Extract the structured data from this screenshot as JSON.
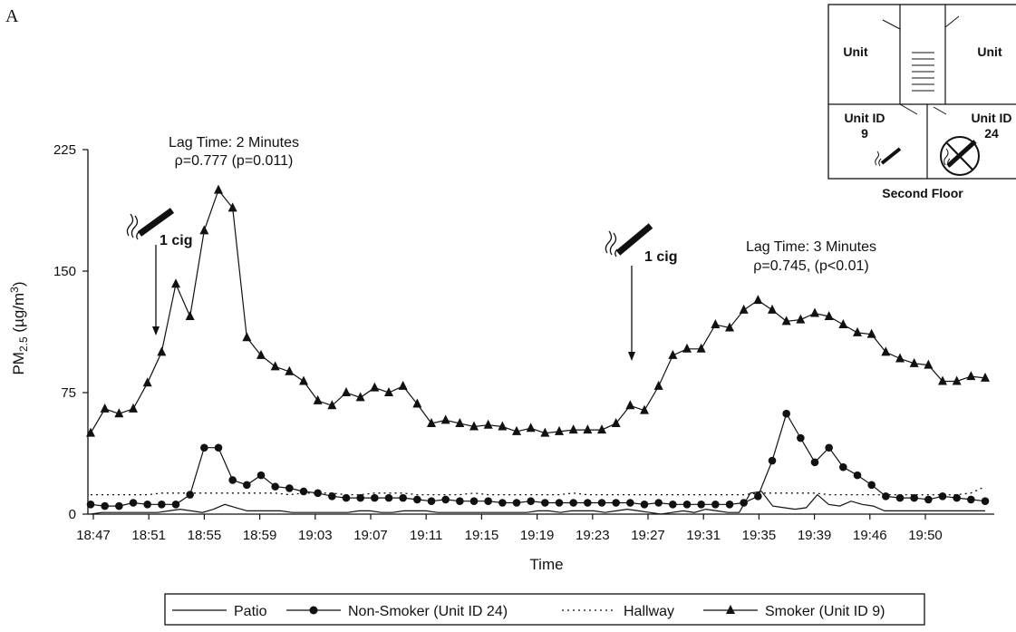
{
  "panel_label": "A",
  "chart_data": {
    "type": "line",
    "xlabel": "Time",
    "ylabel": "PM",
    "ylabel_sub": "2.5",
    "ylabel_unit": " (µg/m",
    "ylabel_sup": "3",
    "ylabel_close": ")",
    "ylim": [
      0,
      225
    ],
    "yticks": [
      "0",
      "75",
      "150",
      "225"
    ],
    "xticks": [
      "18:47",
      "18:51",
      "18:55",
      "18:59",
      "19:03",
      "19:07",
      "19:11",
      "19:15",
      "19:19",
      "19:23",
      "19:27",
      "19:31",
      "19:35",
      "19:39",
      "19:46",
      "19:50"
    ],
    "grid": false,
    "legend_position": "bottom",
    "series": [
      {
        "name": "Patio",
        "style": "solid",
        "marker": "none",
        "values": [
          0,
          1,
          1,
          1,
          1,
          1,
          1,
          2,
          3,
          2,
          1,
          3,
          6,
          4,
          2,
          2,
          2,
          2,
          1,
          1,
          1,
          1,
          1,
          1,
          2,
          2,
          1,
          1,
          2,
          2,
          2,
          1,
          1,
          1,
          1,
          1,
          1,
          1,
          1,
          1,
          2,
          2,
          1,
          2,
          2,
          2,
          1,
          2,
          3,
          2,
          1,
          0,
          1,
          2,
          1,
          3,
          2,
          1,
          1,
          13,
          14,
          5,
          4,
          3,
          4,
          12,
          6,
          5,
          8,
          6,
          5,
          2,
          2,
          2,
          2,
          2,
          2,
          2,
          2,
          2,
          2
        ]
      },
      {
        "name": "Non-Smoker (Unit ID 24)",
        "style": "solid",
        "marker": "circle",
        "values": [
          6,
          5,
          5,
          7,
          6,
          6,
          6,
          12,
          41,
          41,
          21,
          18,
          24,
          17,
          16,
          14,
          13,
          11,
          10,
          10,
          10,
          10,
          10,
          9,
          8,
          9,
          8,
          8,
          8,
          7,
          7,
          8,
          7,
          7,
          7,
          7,
          7,
          7,
          7,
          6,
          7,
          6,
          6,
          6,
          6,
          6,
          7,
          11,
          33,
          62,
          47,
          32,
          41,
          29,
          24,
          18,
          11,
          10,
          10,
          9,
          11,
          10,
          9,
          8
        ]
      },
      {
        "name": "Hallway",
        "style": "dotted",
        "marker": "none",
        "values": [
          12,
          12,
          12,
          12,
          12,
          13,
          13,
          13,
          13,
          13,
          13,
          13,
          13,
          13,
          12,
          13,
          13,
          13,
          12,
          12,
          13,
          13,
          13,
          12,
          12,
          12,
          12,
          13,
          12,
          12,
          12,
          12,
          12,
          12,
          13,
          12,
          12,
          12,
          12,
          12,
          12,
          12,
          12,
          12,
          12,
          12,
          12,
          13,
          13,
          13,
          13,
          13,
          12,
          12,
          12,
          12,
          12,
          12,
          12,
          12,
          12,
          12,
          13,
          17
        ]
      },
      {
        "name": "Smoker (Unit ID 9)",
        "style": "solid",
        "marker": "triangle",
        "values": [
          50,
          65,
          62,
          65,
          81,
          100,
          142,
          122,
          175,
          200,
          189,
          109,
          98,
          91,
          88,
          82,
          70,
          67,
          75,
          72,
          78,
          75,
          79,
          68,
          56,
          58,
          56,
          54,
          55,
          54,
          51,
          53,
          50,
          51,
          52,
          52,
          52,
          56,
          67,
          64,
          79,
          98,
          102,
          102,
          117,
          115,
          126,
          132,
          126,
          119,
          120,
          124,
          122,
          117,
          112,
          111,
          100,
          96,
          93,
          92,
          82,
          82,
          85,
          84
        ]
      }
    ],
    "annotations": [
      {
        "id": "left",
        "line1": "Lag Time: 2 Minutes",
        "line2": "ρ=0.777 (p=0.011)",
        "cig_label": "1 cig"
      },
      {
        "id": "right",
        "line1": "Lag Time: 3 Minutes",
        "line2": "ρ=0.745, (p<0.01)",
        "cig_label": "1 cig"
      }
    ]
  },
  "inset": {
    "unit_top_left": "Unit",
    "unit_top_right": "Unit",
    "unit9_label": "Unit ID",
    "unit9_number": "9",
    "unit24_label": "Unit ID",
    "unit24_number": "24",
    "floor_label": "Second Floor",
    "unit9_icon": "cigarette-icon",
    "unit24_icon": "no-smoking-icon"
  },
  "icons": {
    "cigarette": "cigarette-icon",
    "arrow": "down-arrow-icon"
  }
}
